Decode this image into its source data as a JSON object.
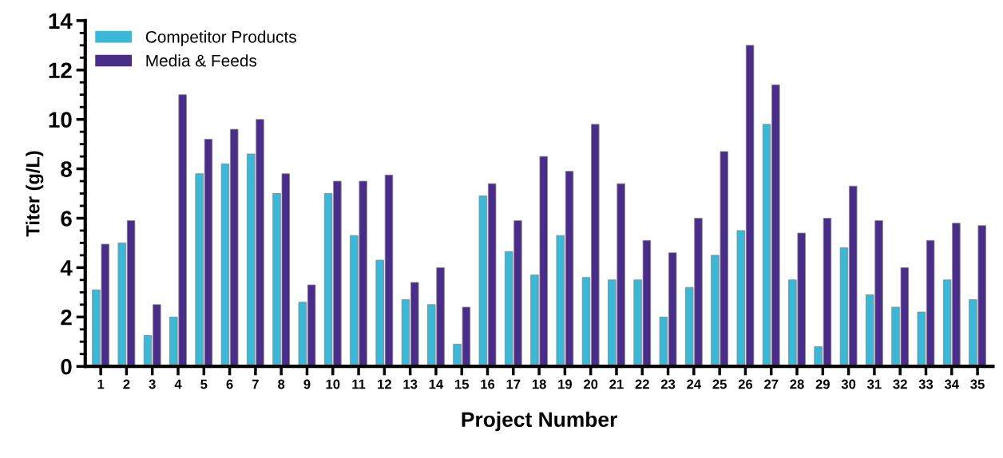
{
  "chart_data": {
    "type": "bar",
    "xlabel": "Project Number",
    "ylabel": "Titer (g/L)",
    "categories": [
      "1",
      "2",
      "3",
      "4",
      "5",
      "6",
      "7",
      "8",
      "9",
      "10",
      "11",
      "12",
      "13",
      "14",
      "15",
      "16",
      "17",
      "18",
      "19",
      "20",
      "21",
      "22",
      "23",
      "24",
      "25",
      "26",
      "27",
      "28",
      "29",
      "30",
      "31",
      "32",
      "33",
      "34",
      "35"
    ],
    "series": [
      {
        "name": "Competitor Products",
        "color": "#3bb8d8",
        "values": [
          3.1,
          5.0,
          1.25,
          2.0,
          7.8,
          8.2,
          8.6,
          7.0,
          2.6,
          7.0,
          5.3,
          4.3,
          2.7,
          2.5,
          0.9,
          6.9,
          4.65,
          3.7,
          5.3,
          3.6,
          3.5,
          3.5,
          2.0,
          3.2,
          4.5,
          5.5,
          9.8,
          3.5,
          0.8,
          4.8,
          2.9,
          2.4,
          2.2,
          3.5,
          2.7
        ]
      },
      {
        "name": "Media & Feeds",
        "color": "#4a2d8a",
        "values": [
          4.95,
          5.9,
          2.5,
          11.0,
          9.2,
          9.6,
          10.0,
          7.8,
          3.3,
          7.5,
          7.5,
          7.75,
          3.4,
          4.0,
          2.4,
          7.4,
          5.9,
          8.5,
          7.9,
          9.8,
          7.4,
          5.1,
          4.6,
          6.0,
          8.7,
          13.0,
          11.4,
          5.4,
          6.0,
          7.3,
          5.9,
          4.0,
          5.1,
          5.8,
          5.7
        ]
      }
    ],
    "ylim": [
      0,
      14
    ],
    "yticks": [
      0,
      2,
      4,
      6,
      8,
      10,
      12,
      14
    ],
    "grid": false,
    "legend": "top left"
  }
}
